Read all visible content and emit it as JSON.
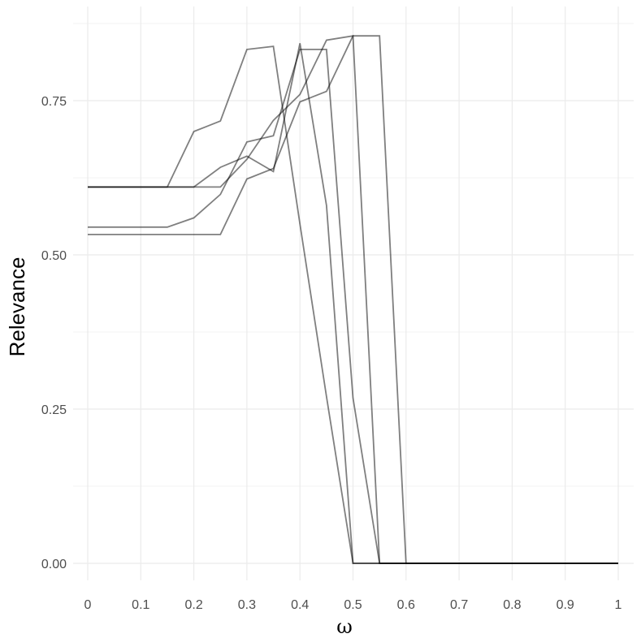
{
  "chart_data": {
    "type": "line",
    "xlabel": "ω",
    "ylabel": "Relevance",
    "xlim": [
      0,
      1
    ],
    "ylim": [
      0,
      0.86
    ],
    "x_ticks": [
      0,
      0.1,
      0.2,
      0.3,
      0.4,
      0.5,
      0.6,
      0.7,
      0.8,
      0.9,
      1
    ],
    "x_tick_labels": [
      "0",
      "0.1",
      "0.2",
      "0.3",
      "0.4",
      "0.5",
      "0.6",
      "0.7",
      "0.8",
      "0.9",
      "1"
    ],
    "y_ticks": [
      0,
      0.25,
      0.5,
      0.75
    ],
    "y_tick_labels": [
      "0.00",
      "0.25",
      "0.50",
      "0.75"
    ],
    "grid": true,
    "line_color": "#000000",
    "line_opacity": 0.5,
    "series": [
      {
        "x": [
          0,
          0.05,
          0.1,
          0.15,
          0.2,
          0.25,
          0.3,
          0.35,
          0.4,
          0.45,
          0.5,
          0.55,
          0.6,
          0.65,
          0.7,
          0.75,
          0.8,
          0.85,
          0.9,
          0.95,
          1
        ],
        "values": [
          0.61,
          0.61,
          0.61,
          0.61,
          0.7,
          0.717,
          0.833,
          0.838,
          0.55,
          0.27,
          0,
          0,
          0,
          0,
          0,
          0,
          0,
          0,
          0,
          0,
          0
        ]
      },
      {
        "x": [
          0,
          0.05,
          0.1,
          0.15,
          0.2,
          0.25,
          0.3,
          0.35,
          0.4,
          0.45,
          0.5,
          0.55,
          0.6,
          0.65,
          0.7,
          0.75,
          0.8,
          0.85,
          0.9,
          0.95,
          1
        ],
        "values": [
          0.61,
          0.61,
          0.61,
          0.61,
          0.61,
          0.642,
          0.66,
          0.635,
          0.843,
          0.58,
          0,
          0,
          0,
          0,
          0,
          0,
          0,
          0,
          0,
          0,
          0
        ]
      },
      {
        "x": [
          0,
          0.05,
          0.1,
          0.15,
          0.2,
          0.25,
          0.3,
          0.35,
          0.4,
          0.45,
          0.5,
          0.55,
          0.6,
          0.65,
          0.7,
          0.75,
          0.8,
          0.85,
          0.9,
          0.95,
          1
        ],
        "values": [
          0.545,
          0.545,
          0.545,
          0.545,
          0.56,
          0.598,
          0.683,
          0.693,
          0.833,
          0.833,
          0.268,
          0,
          0,
          0,
          0,
          0,
          0,
          0,
          0,
          0,
          0
        ]
      },
      {
        "x": [
          0,
          0.05,
          0.1,
          0.15,
          0.2,
          0.25,
          0.3,
          0.35,
          0.4,
          0.45,
          0.5,
          0.55,
          0.6,
          0.65,
          0.7,
          0.75,
          0.8,
          0.85,
          0.9,
          0.95,
          1
        ],
        "values": [
          0.533,
          0.533,
          0.533,
          0.533,
          0.533,
          0.533,
          0.623,
          0.64,
          0.748,
          0.765,
          0.855,
          0.855,
          0,
          0,
          0,
          0,
          0,
          0,
          0,
          0,
          0
        ]
      },
      {
        "x": [
          0,
          0.05,
          0.1,
          0.15,
          0.2,
          0.25,
          0.3,
          0.35,
          0.4,
          0.45,
          0.5,
          0.55,
          0.6,
          0.65,
          0.7,
          0.75,
          0.8,
          0.85,
          0.9,
          0.95,
          1
        ],
        "values": [
          0.61,
          0.61,
          0.61,
          0.61,
          0.61,
          0.61,
          0.655,
          0.718,
          0.76,
          0.848,
          0.855,
          0,
          0,
          0,
          0,
          0,
          0,
          0,
          0,
          0,
          0
        ]
      }
    ]
  }
}
